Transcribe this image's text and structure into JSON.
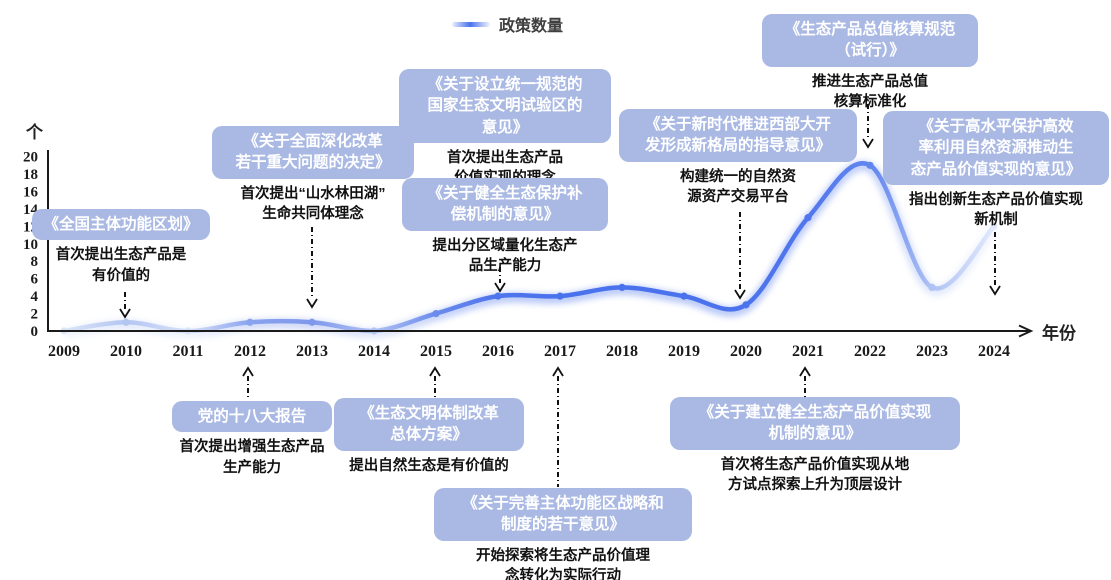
{
  "chart_data": {
    "type": "line",
    "series_name": "政策数量",
    "x_unit": "年份",
    "y_unit": "个",
    "categories": [
      "2009",
      "2010",
      "2011",
      "2012",
      "2013",
      "2014",
      "2015",
      "2016",
      "2017",
      "2018",
      "2019",
      "2020",
      "2021",
      "2022",
      "2023",
      "2024"
    ],
    "values": [
      0,
      1,
      0,
      1,
      1,
      0,
      2,
      4,
      4,
      5,
      4,
      3,
      13,
      19,
      5,
      12
    ],
    "ylim": [
      0,
      20
    ],
    "ytick_step": 2,
    "grid": "off",
    "legend_position": "top-center",
    "accent_color": "#4a72ec",
    "faded_line_color": "#dde6f8",
    "box_color": "#aab9e4"
  },
  "annotations": [
    {
      "title": "《全国主体功能区划》",
      "desc": "首次提出生态产品是\n有价值的"
    },
    {
      "title": "《关于全面深化改革\n若干重大问题的决定》",
      "desc": "首次提出“山水林田湖”\n生命共同体理念"
    },
    {
      "title": "《关于设立统一规范的\n国家生态文明试验区的\n意见》",
      "desc": "首次提出生态产品\n价值实现的理念"
    },
    {
      "title": "《关于健全生态保护补\n偿机制的意见》",
      "desc": "提出分区域量化生态产\n品生产能力"
    },
    {
      "title": "《关于新时代推进西部大开\n发形成新格局的指导意见》",
      "desc": "构建统一的自然资\n源资产交易平台"
    },
    {
      "title": "《生态产品总值核算规范\n（试行）》",
      "desc": "推进生态产品总值\n核算标准化"
    },
    {
      "title": "《关于高水平保护高效\n率利用自然资源推动生\n态产品价值实现的意见》",
      "desc": "指出创新生态产品价值实现\n新机制"
    },
    {
      "title": "党的十八大报告",
      "desc": "首次提出增强生态产品\n生产能力"
    },
    {
      "title": "《生态文明体制改革\n总体方案》",
      "desc": "提出自然生态是有价值的"
    },
    {
      "title": "《关于完善主体功能区战略和\n制度的若干意见》",
      "desc": "开始探索将生态产品价值理\n念转化为实际行动"
    },
    {
      "title": "《关于建立健全生态产品价值实现\n机制的意见》",
      "desc": "首次将生态产品价值实现从地\n方试点探索上升为顶层设计"
    }
  ]
}
